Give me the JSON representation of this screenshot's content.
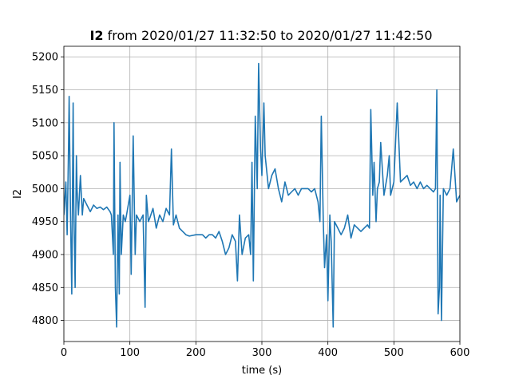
{
  "chart_data": {
    "type": "line",
    "title_bold": "I2",
    "title_rest": " from 2020/01/27 11:32:50 to 2020/01/27 11:42:50",
    "xlabel": "time (s)",
    "ylabel": "I2",
    "xlim": [
      0,
      600
    ],
    "ylim": [
      4768,
      5216
    ],
    "xticks": [
      0,
      100,
      200,
      300,
      400,
      500,
      600
    ],
    "yticks": [
      4800,
      4850,
      4900,
      4950,
      5000,
      5050,
      5100,
      5150,
      5200
    ],
    "grid": true,
    "line_color": "#1f77b4",
    "series": [
      {
        "x": [
          0,
          3,
          5,
          7,
          8,
          10,
          12,
          14,
          15,
          17,
          19,
          20,
          22,
          25,
          28,
          30,
          35,
          40,
          45,
          50,
          55,
          60,
          65,
          70,
          72,
          75,
          76,
          78,
          80,
          82,
          84,
          85,
          87,
          90,
          93,
          95,
          100,
          102,
          105,
          108,
          110,
          115,
          120,
          123,
          125,
          128,
          130,
          135,
          140,
          145,
          150,
          155,
          160,
          163,
          166,
          170,
          175,
          180,
          185,
          190,
          200,
          210,
          215,
          220,
          225,
          230,
          235,
          240,
          245,
          250,
          255,
          260,
          263,
          266,
          270,
          275,
          280,
          283,
          285,
          287,
          290,
          293,
          295,
          298,
          300,
          303,
          305,
          310,
          315,
          320,
          325,
          330,
          335,
          340,
          345,
          350,
          355,
          360,
          365,
          370,
          375,
          380,
          385,
          388,
          390,
          393,
          395,
          398,
          400,
          403,
          405,
          408,
          410,
          415,
          420,
          425,
          430,
          435,
          440,
          445,
          450,
          455,
          460,
          463,
          465,
          468,
          470,
          473,
          475,
          478,
          480,
          485,
          490,
          493,
          495,
          500,
          505,
          510,
          515,
          520,
          525,
          530,
          535,
          540,
          545,
          550,
          555,
          560,
          563,
          565,
          567,
          569,
          570,
          572,
          575,
          580,
          585,
          590,
          595,
          600
        ],
        "y": [
          4960,
          5010,
          4930,
          5060,
          5140,
          4960,
          4840,
          5130,
          4980,
          4850,
          5050,
          5000,
          4960,
          5020,
          4960,
          4985,
          4975,
          4965,
          4975,
          4970,
          4972,
          4968,
          4972,
          4965,
          4960,
          4900,
          5100,
          4850,
          4790,
          4960,
          4840,
          5040,
          4900,
          4960,
          4950,
          4960,
          4990,
          4870,
          5080,
          4900,
          4960,
          4950,
          4960,
          4820,
          4990,
          4950,
          4955,
          4970,
          4940,
          4960,
          4950,
          4970,
          4960,
          5060,
          4945,
          4960,
          4940,
          4935,
          4930,
          4928,
          4930,
          4930,
          4925,
          4930,
          4930,
          4925,
          4935,
          4920,
          4900,
          4910,
          4930,
          4920,
          4860,
          4960,
          4900,
          4925,
          4930,
          4900,
          5040,
          4860,
          5110,
          5000,
          5190,
          5060,
          5020,
          5130,
          5050,
          5000,
          5020,
          5030,
          5000,
          4980,
          5010,
          4990,
          4995,
          5000,
          4990,
          5000,
          5000,
          5000,
          4995,
          5000,
          4980,
          4950,
          5110,
          4950,
          4880,
          4930,
          4830,
          4960,
          4920,
          4790,
          4950,
          4940,
          4930,
          4940,
          4960,
          4925,
          4945,
          4940,
          4935,
          4940,
          4945,
          4940,
          5120,
          4990,
          5040,
          4950,
          5000,
          5010,
          5070,
          4990,
          5020,
          5050,
          4990,
          5010,
          5130,
          5010,
          5015,
          5020,
          5005,
          5010,
          5000,
          5010,
          5000,
          5005,
          5000,
          4995,
          5000,
          5150,
          4810,
          4850,
          4990,
          4800,
          5000,
          4990,
          5000,
          5060,
          4980,
          4990
        ]
      }
    ]
  }
}
